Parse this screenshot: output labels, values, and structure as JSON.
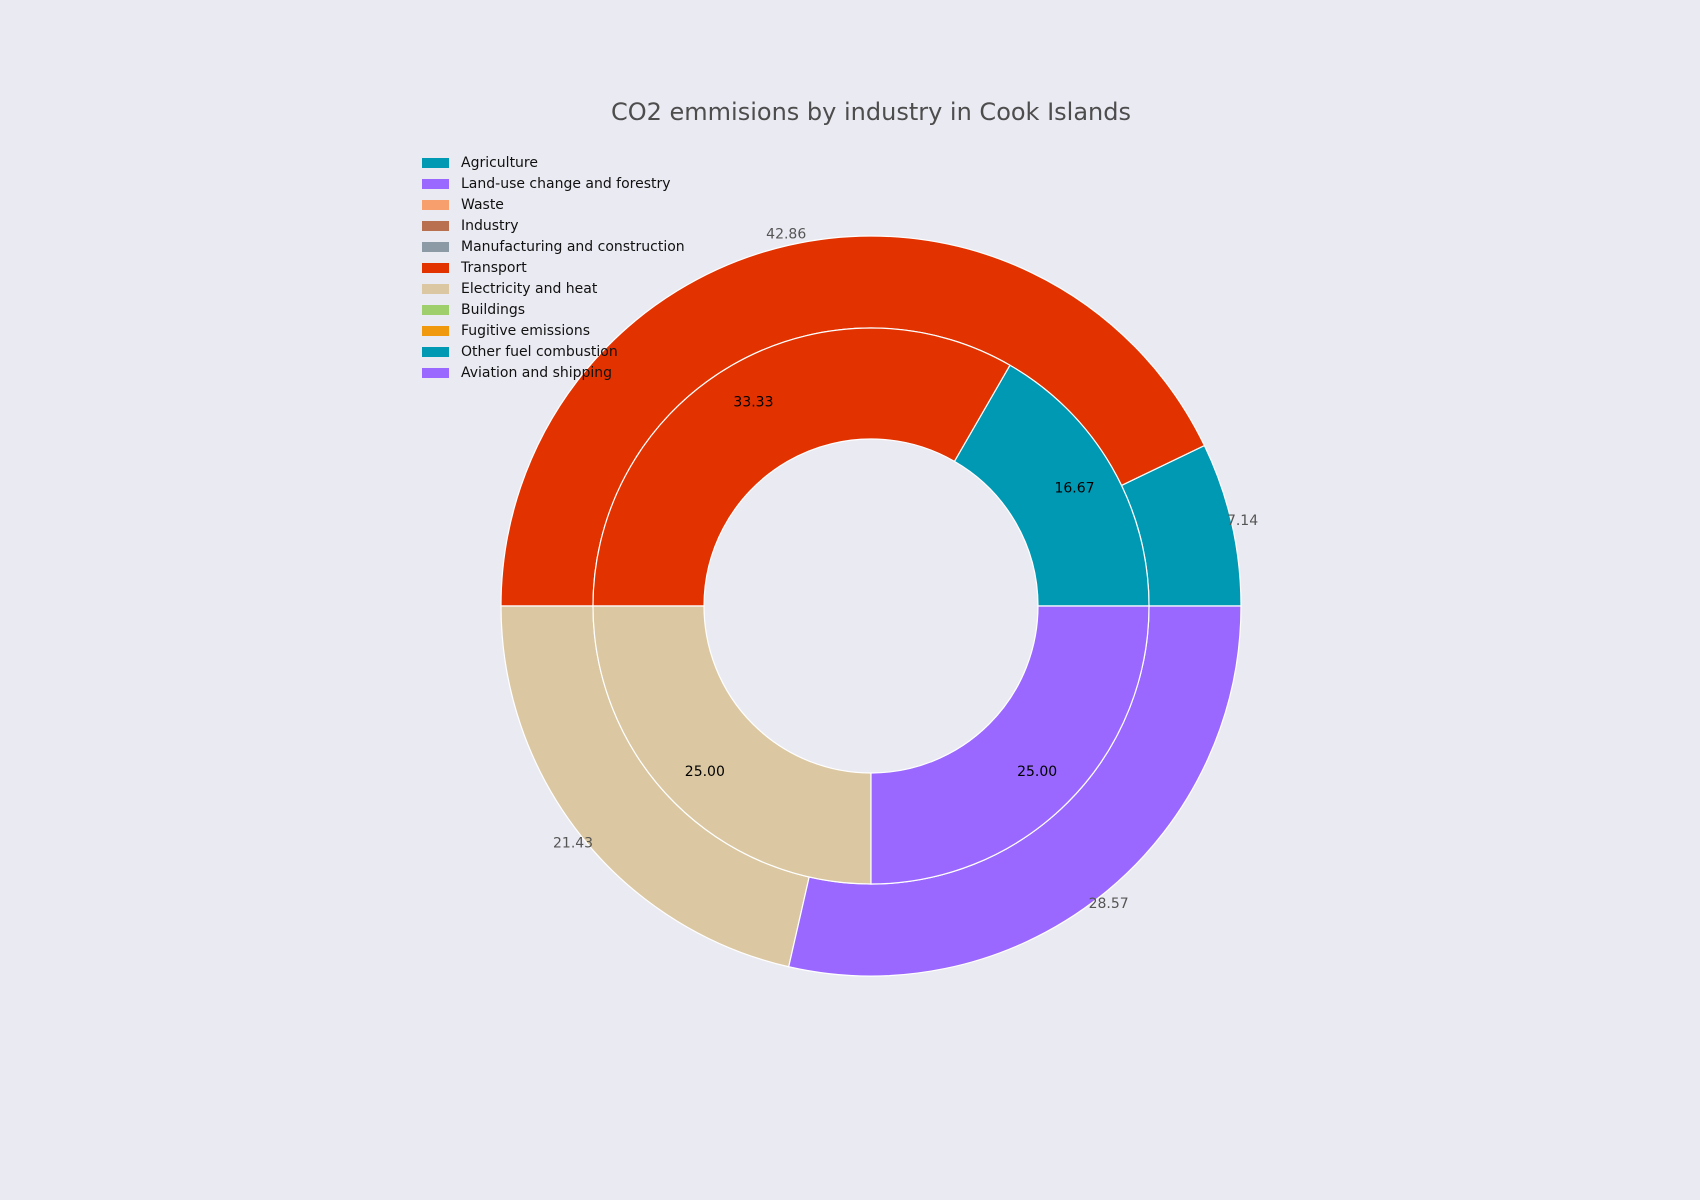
{
  "chart_data": {
    "type": "pie",
    "variant": "nested-donut",
    "title": "CO2 emmisions by industry in Cook Islands",
    "legend": {
      "placement": "top-left",
      "entries": [
        {
          "label": "Agriculture",
          "color": "#0099b4"
        },
        {
          "label": "Land-use change and forestry",
          "color": "#9a68ff"
        },
        {
          "label": "Waste",
          "color": "#f7a06e"
        },
        {
          "label": "Industry",
          "color": "#b8704f"
        },
        {
          "label": "Manufacturing and construction",
          "color": "#8c9aa5"
        },
        {
          "label": "Transport",
          "color": "#e23200"
        },
        {
          "label": "Electricity and heat",
          "color": "#dbc8a2"
        },
        {
          "label": "Buildings",
          "color": "#9fcf6d"
        },
        {
          "label": "Fugitive emissions",
          "color": "#f0990f"
        },
        {
          "label": "Other fuel combustion",
          "color": "#0099b4"
        },
        {
          "label": "Aviation and shipping",
          "color": "#9a68ff"
        }
      ]
    },
    "outer_ring": [
      {
        "value": 7.14,
        "label": "7.14",
        "color": "#0099b4"
      },
      {
        "value": 42.86,
        "label": "42.86",
        "color": "#e23200"
      },
      {
        "value": 21.43,
        "label": "21.43",
        "color": "#dbc8a2"
      },
      {
        "value": 28.57,
        "label": "28.57",
        "color": "#9a68ff"
      }
    ],
    "inner_ring": [
      {
        "value": 16.67,
        "label": "16.67",
        "color": "#0099b4"
      },
      {
        "value": 33.33,
        "label": "33.33",
        "color": "#e23200"
      },
      {
        "value": 25.0,
        "label": "25.00",
        "color": "#dbc8a2"
      },
      {
        "value": 25.0,
        "label": "25.00",
        "color": "#9a68ff"
      }
    ],
    "start_angle_deg": 0,
    "direction": "counterclockwise"
  }
}
